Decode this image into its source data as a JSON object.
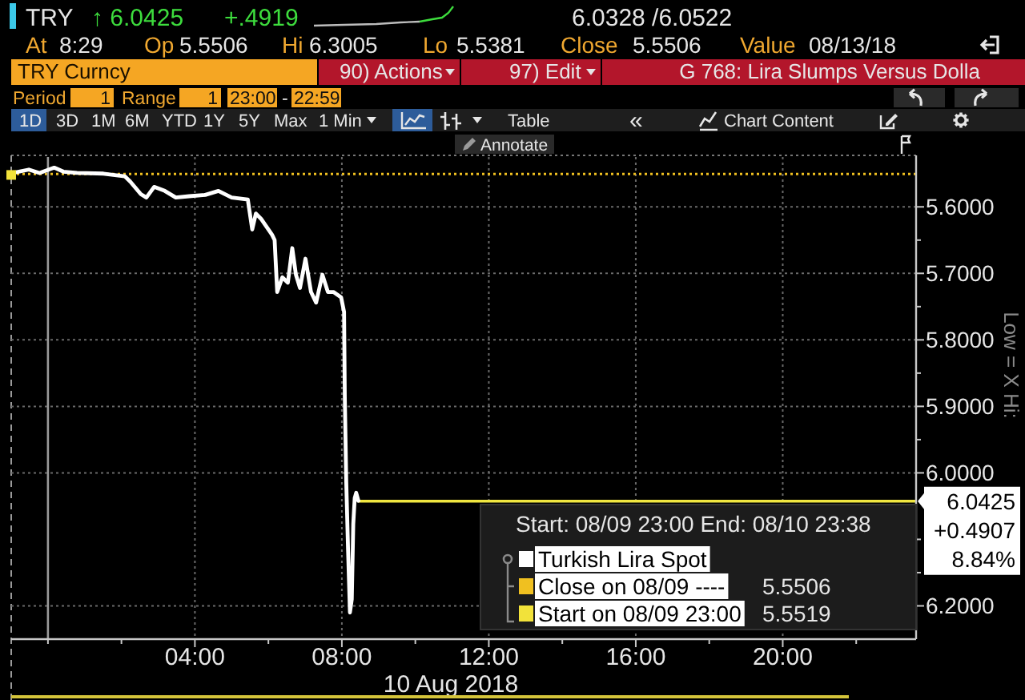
{
  "chart_data": {
    "type": "line",
    "title": "G 768: Lira Slumps Versus Dolla",
    "xlabel": "10 Aug 2018",
    "legend_title": "Start: 08/09 23:00 End: 08/10 23:38",
    "series": [
      {
        "name": "Turkish Lira Spot",
        "color": "#ffffff",
        "x": [
          -1,
          -0.95,
          -0.52,
          -0.23,
          0.17,
          0.42,
          0.79,
          1.51,
          2.09,
          2.24,
          2.53,
          2.68,
          2.89,
          3.18,
          3.48,
          3.84,
          4.28,
          4.64,
          5.0,
          5.44,
          5.56,
          5.66,
          5.8,
          5.95,
          6.1,
          6.17,
          6.24,
          6.38,
          6.53,
          6.65,
          6.75,
          6.86,
          7.01,
          7.16,
          7.3,
          7.47,
          7.62,
          7.77,
          7.98,
          8.06,
          8.08,
          8.12,
          8.17,
          8.22,
          8.27,
          8.31,
          8.35,
          8.39,
          8.45
        ],
        "values": [
          5.552,
          5.549,
          5.544,
          5.549,
          5.541,
          5.547,
          5.549,
          5.55,
          5.554,
          5.562,
          5.581,
          5.586,
          5.57,
          5.576,
          5.586,
          5.584,
          5.582,
          5.576,
          5.586,
          5.589,
          5.634,
          5.61,
          5.618,
          5.63,
          5.642,
          5.65,
          5.728,
          5.706,
          5.714,
          5.662,
          5.702,
          5.722,
          5.678,
          5.728,
          5.744,
          5.702,
          5.728,
          5.728,
          5.736,
          5.758,
          5.886,
          6.014,
          6.118,
          6.21,
          6.19,
          6.077,
          6.038,
          6.03,
          6.042
        ]
      },
      {
        "name": "Start on 08/09 23:00",
        "type": "scatter",
        "marker": "square",
        "color": "#f2e23a",
        "x": [
          -1
        ],
        "values": [
          5.552
        ]
      }
    ],
    "xlim": [
      -1,
      23.63
    ],
    "xticks": [
      {
        "value": 0,
        "label": null
      },
      {
        "value": 2,
        "label": null
      },
      {
        "value": 4,
        "label": "04:00"
      },
      {
        "value": 6,
        "label": null
      },
      {
        "value": 8,
        "label": "08:00"
      },
      {
        "value": 10,
        "label": null
      },
      {
        "value": 12,
        "label": "12:00"
      },
      {
        "value": 14,
        "label": null
      },
      {
        "value": 16,
        "label": "16:00"
      },
      {
        "value": 18,
        "label": null
      },
      {
        "value": 20,
        "label": "20:00"
      },
      {
        "value": 22,
        "label": null
      }
    ],
    "ylim": [
      6.25,
      5.525
    ],
    "yticks": [
      {
        "value": 5.6,
        "label": "5.6000"
      },
      {
        "value": 5.65,
        "label": null
      },
      {
        "value": 5.7,
        "label": "5.7000"
      },
      {
        "value": 5.75,
        "label": null
      },
      {
        "value": 5.8,
        "label": "5.8000"
      },
      {
        "value": 5.85,
        "label": null
      },
      {
        "value": 5.9,
        "label": "5.9000"
      },
      {
        "value": 5.95,
        "label": null
      },
      {
        "value": 6.0,
        "label": "6.0000"
      },
      {
        "value": 6.1,
        "label": null
      },
      {
        "value": 6.15,
        "label": null
      },
      {
        "value": 6.2,
        "label": "6.2000"
      }
    ],
    "grid": true,
    "legend": "bottom right",
    "ref_lines": [
      {
        "axis": "y",
        "value": 5.5506,
        "label": "Close on 08/09 ----",
        "color": "#f0c020",
        "line_style": "dotted"
      },
      {
        "axis": "y",
        "value": 6.0425,
        "label": "6.0425",
        "color": "#f0e640",
        "line_style": "solid"
      },
      {
        "axis": "x",
        "value": 0,
        "color": "#9a9a9a",
        "line_style": "solid"
      }
    ],
    "annotations": [
      "TRY",
      "↑ 6.0425",
      "+.4919",
      "6.0328 /6.0522",
      "At",
      "8:29",
      "Op",
      "5.5506",
      "Hi",
      "6.3005",
      "Lo",
      "5.5381",
      "Close",
      "5.5506",
      "Value",
      "08/13/18",
      "TRY Curncy",
      "90) Actions",
      "97) Edit",
      "Period",
      "1",
      "Range",
      "1",
      "23:00",
      "-",
      "22:59",
      "1D",
      "3D",
      "1M",
      "6M",
      "YTD",
      "1Y",
      "5Y",
      "Max",
      "1 Min",
      "Table",
      "«",
      "Chart Content",
      "Annotate",
      "Low = X Hi:",
      "+0.4907",
      "8.84%",
      "5.5519"
    ]
  }
}
